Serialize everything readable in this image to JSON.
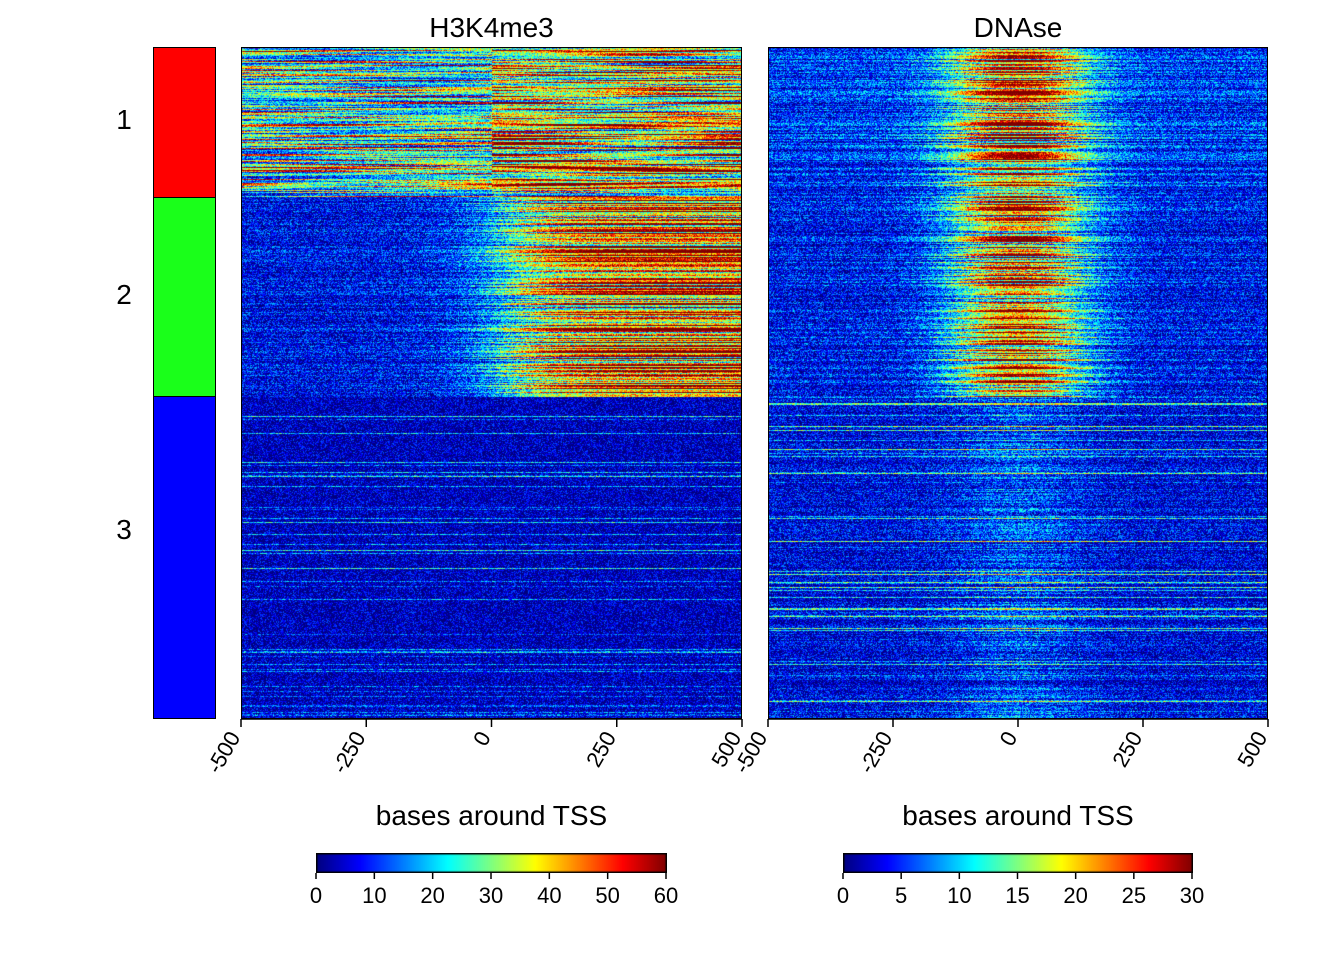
{
  "chart_data": {
    "type": "heatmap",
    "clusters": [
      {
        "label": "1",
        "color": "#ff0000",
        "fraction": 0.223
      },
      {
        "label": "2",
        "color": "#1aff1a",
        "fraction": 0.297
      },
      {
        "label": "3",
        "color": "#0000ff",
        "fraction": 0.48
      }
    ],
    "panels": [
      {
        "title": "H3K4me3",
        "xlabel": "bases around TSS",
        "xlim": [
          -500,
          500
        ],
        "xticks": [
          "-500",
          "-250",
          "0",
          "250",
          "500"
        ],
        "colorbar": {
          "min": 0,
          "max": 60,
          "ticks": [
            "0",
            "10",
            "20",
            "30",
            "40",
            "50",
            "60"
          ]
        }
      },
      {
        "title": "DNAse",
        "xlabel": "bases around TSS",
        "xlim": [
          -500,
          500
        ],
        "xticks": [
          "-500",
          "-250",
          "0",
          "250",
          "500"
        ],
        "colorbar": {
          "min": 0,
          "max": 30,
          "ticks": [
            "0",
            "5",
            "10",
            "15",
            "20",
            "25",
            "30"
          ]
        }
      }
    ],
    "colormap": [
      "#00007f",
      "#0000ff",
      "#007fff",
      "#00ffff",
      "#7fff7f",
      "#ffff00",
      "#ff7f00",
      "#ff0000",
      "#7f0000"
    ]
  }
}
